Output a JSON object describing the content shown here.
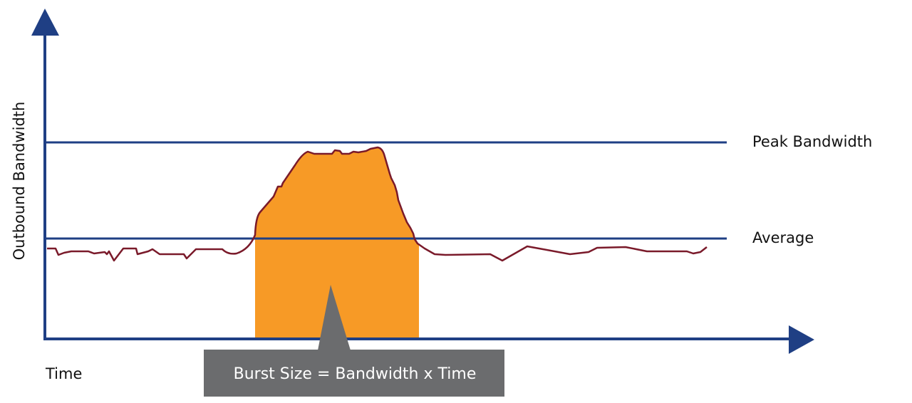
{
  "diagram": {
    "y_axis_label": "Outbound Bandwidth",
    "x_axis_label": "Time",
    "peak_label": "Peak Bandwidth",
    "average_label": "Average",
    "callout": "Burst Size = Bandwidth x Time"
  },
  "colors": {
    "axis": "#1f3f84",
    "reference_line": "#1f3f84",
    "traffic_line": "#7a1a2a",
    "burst_fill": "#f79a26",
    "callout_box": "#6b6c6e",
    "callout_text": "#ffffff"
  }
}
